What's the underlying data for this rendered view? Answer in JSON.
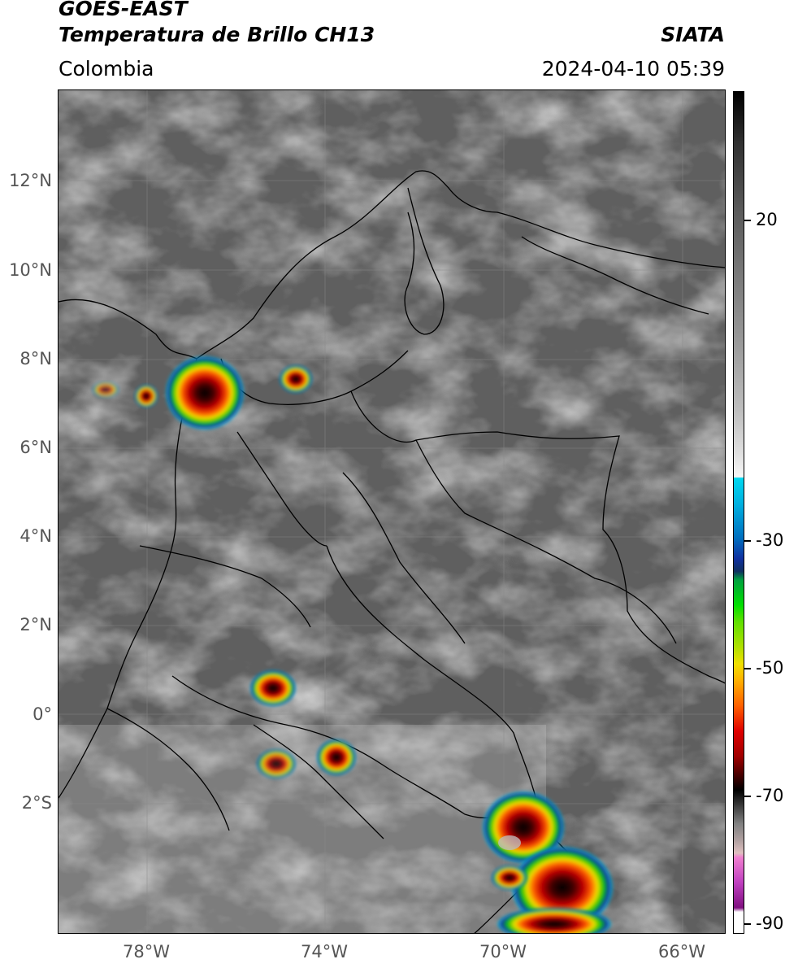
{
  "header": {
    "satellite": "GOES-EAST",
    "product": "Temperatura de Brillo CH13",
    "region": "Colombia",
    "source": "SIATA",
    "timestamp": "2024-04-10 05:39"
  },
  "axes": {
    "lat_labels": [
      "12°N",
      "10°N",
      "8°N",
      "6°N",
      "4°N",
      "2°N",
      "0°",
      "2°S"
    ],
    "lon_labels": [
      "78°W",
      "74°W",
      "70°W",
      "66°W"
    ]
  },
  "colorbar": {
    "labels": [
      "20",
      "-30",
      "-50",
      "-70",
      "-90"
    ],
    "colors": {
      "gray_warm": "#404040",
      "gray_light": "#f0f0f0",
      "cyan": "#00c8e8",
      "blue": "#1030a0",
      "green": "#00c000",
      "yellow": "#f0e000",
      "orange": "#ff8000",
      "red": "#c00000",
      "black": "#000000",
      "magenta": "#c040c0"
    }
  },
  "storms": [
    {
      "name": "storm-uraba"
    },
    {
      "name": "storm-magdalena"
    },
    {
      "name": "storm-pacific"
    },
    {
      "name": "storm-caqueta"
    },
    {
      "name": "storm-putumayo-west"
    },
    {
      "name": "storm-putumayo-east"
    },
    {
      "name": "storm-amazonas-north"
    },
    {
      "name": "storm-amazonas-south"
    }
  ]
}
